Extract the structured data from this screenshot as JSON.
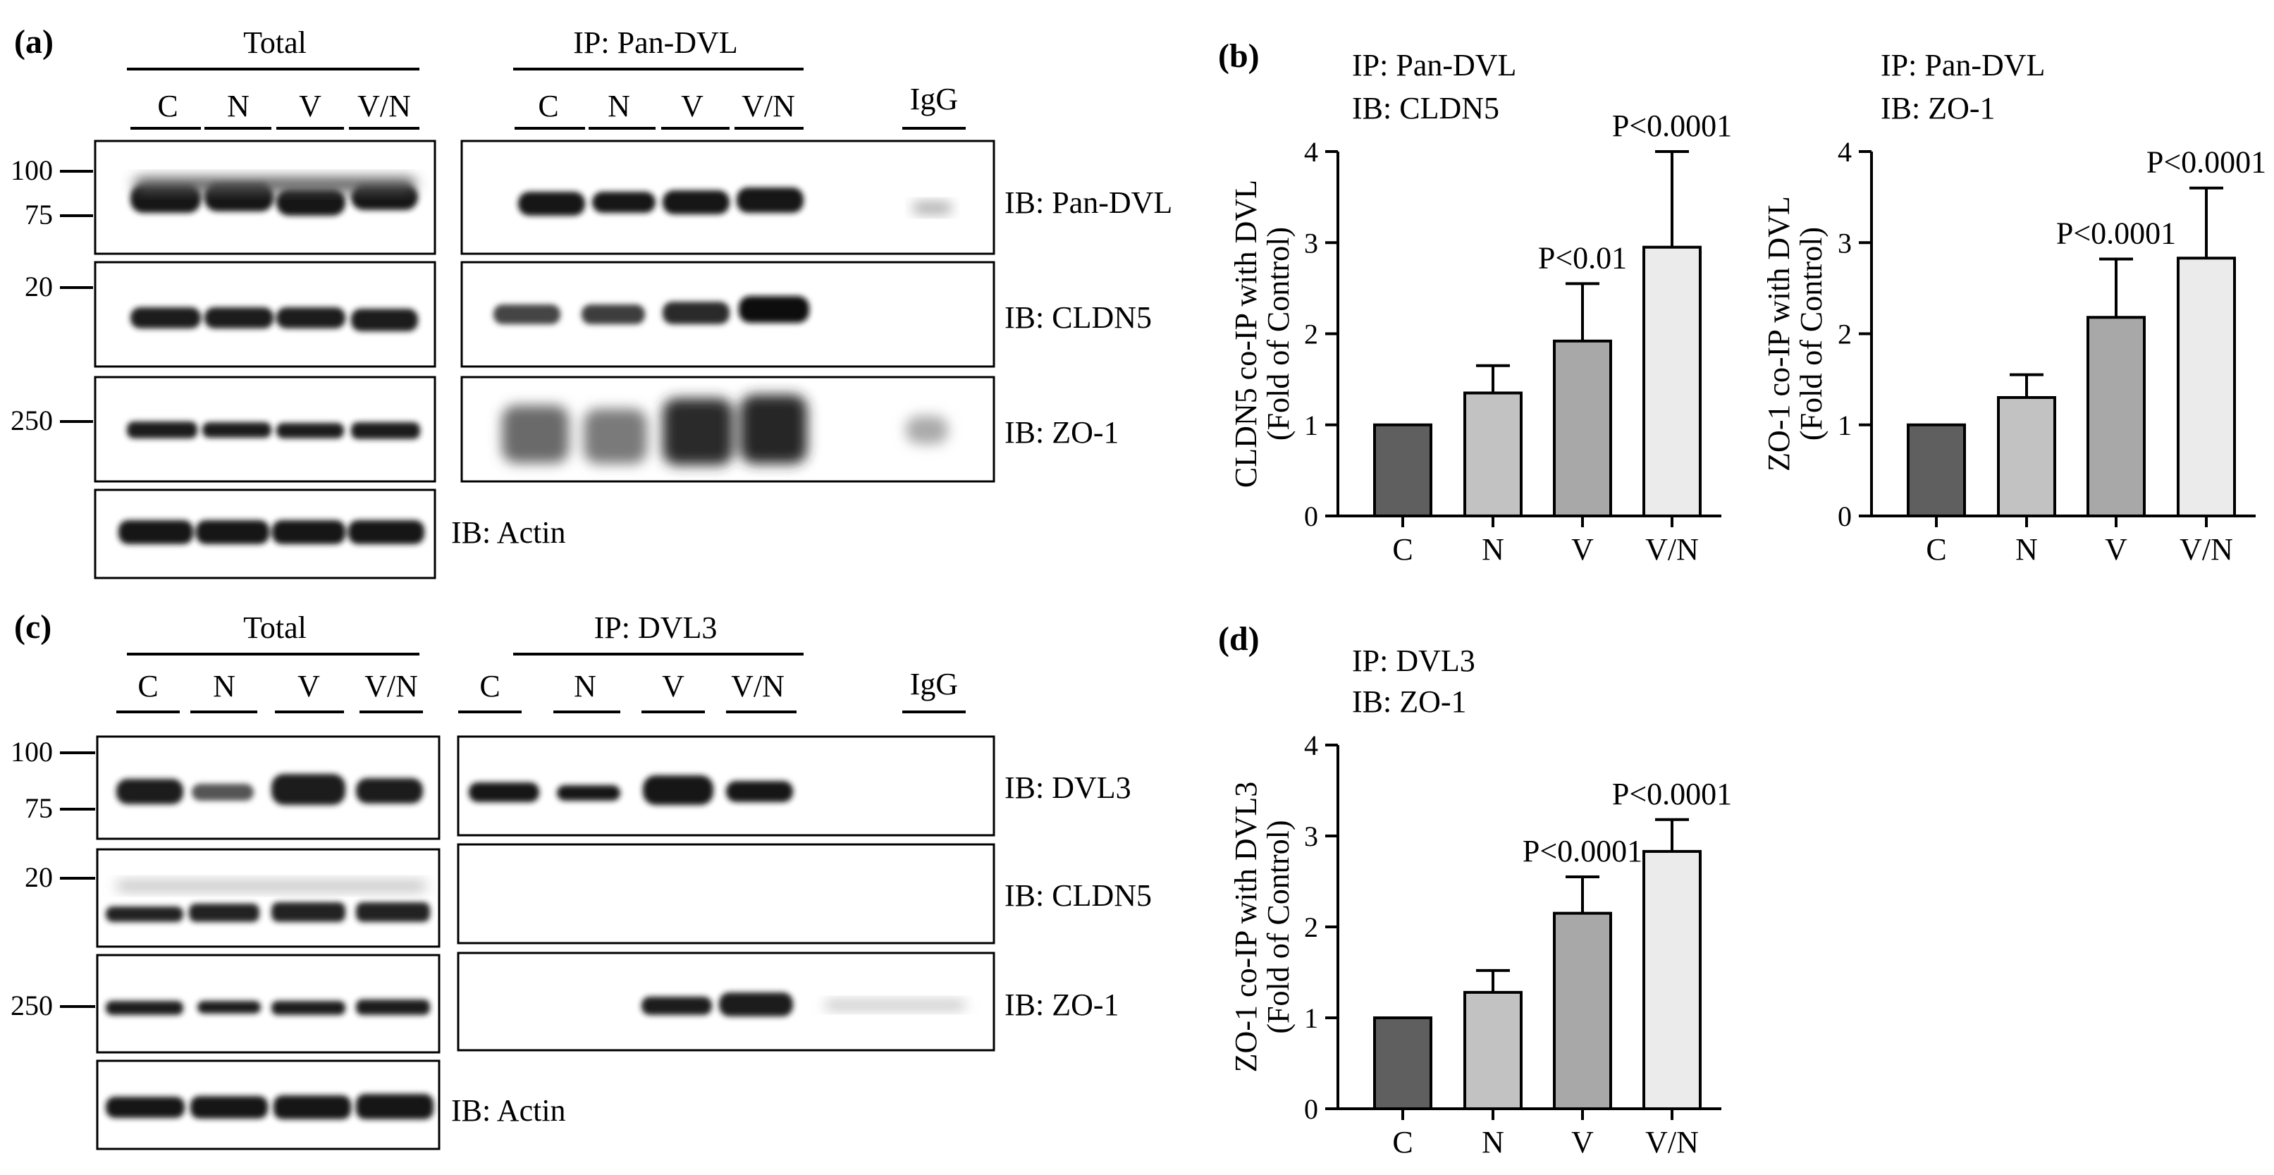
{
  "panel_a": {
    "label": "(a)",
    "total_header": "Total",
    "ip_header": "IP: Pan-DVL",
    "lanes_total": [
      "C",
      "N",
      "V",
      "V/N"
    ],
    "lanes_ip": [
      "C",
      "N",
      "V",
      "V/N"
    ],
    "igg": "IgG",
    "mw": {
      "m100": "100",
      "m75": "75",
      "m20": "20",
      "m250": "250"
    },
    "blots": [
      "IB: Pan-DVL",
      "IB: CLDN5",
      "IB: ZO-1",
      "IB: Actin"
    ]
  },
  "panel_c": {
    "label": "(c)",
    "total_header": "Total",
    "ip_header": "IP: DVL3",
    "lanes_total": [
      "C",
      "N",
      "V",
      "V/N"
    ],
    "lanes_ip": [
      "C",
      "N",
      "V",
      "V/N"
    ],
    "igg": "IgG",
    "mw": {
      "m100": "100",
      "m75": "75",
      "m20": "20",
      "m250": "250"
    },
    "blots": [
      "IB: DVL3",
      "IB: CLDN5",
      "IB: ZO-1",
      "IB: Actin"
    ]
  },
  "panel_b": {
    "label": "(b)"
  },
  "panel_d": {
    "label": "(d)"
  },
  "colors": {
    "C": "#5f5f5f",
    "N": "#c2c2c2",
    "V": "#a8a8a8",
    "V/N": "#ebebeb"
  },
  "chart_data": [
    {
      "type": "bar",
      "panel": "b",
      "title": [
        "IP: Pan-DVL",
        "IB: CLDN5"
      ],
      "categories": [
        "C",
        "N",
        "V",
        "V/N"
      ],
      "values": [
        1.0,
        1.35,
        1.92,
        2.95
      ],
      "error_upper": [
        1.0,
        1.65,
        2.55,
        4.0
      ],
      "annotations": [
        "",
        "",
        "P<0.01",
        "P<0.0001"
      ],
      "ylabel": [
        "CLDN5 co-IP with DVL",
        "(Fold of Control)"
      ],
      "ylim": [
        0,
        4
      ],
      "yticks": [
        "0",
        "1",
        "2",
        "3",
        "4"
      ]
    },
    {
      "type": "bar",
      "panel": "b",
      "title": [
        "IP: Pan-DVL",
        "IB: ZO-1"
      ],
      "categories": [
        "C",
        "N",
        "V",
        "V/N"
      ],
      "values": [
        1.0,
        1.3,
        2.18,
        2.83
      ],
      "error_upper": [
        1.0,
        1.55,
        2.82,
        3.6
      ],
      "annotations": [
        "",
        "",
        "P<0.0001",
        "P<0.0001"
      ],
      "ylabel": [
        "ZO-1 co-IP with DVL",
        "(Fold of Control)"
      ],
      "ylim": [
        0,
        4
      ],
      "yticks": [
        "0",
        "1",
        "2",
        "3",
        "4"
      ]
    },
    {
      "type": "bar",
      "panel": "d",
      "title": [
        "IP: DVL3",
        "IB: ZO-1"
      ],
      "categories": [
        "C",
        "N",
        "V",
        "V/N"
      ],
      "values": [
        1.0,
        1.28,
        2.15,
        2.83
      ],
      "error_upper": [
        1.0,
        1.52,
        2.55,
        3.18
      ],
      "annotations": [
        "",
        "",
        "P<0.0001",
        "P<0.0001"
      ],
      "ylabel": [
        "ZO-1 co-IP with DVL3",
        "(Fold of Control)"
      ],
      "ylim": [
        0,
        4
      ],
      "yticks": [
        "0",
        "1",
        "2",
        "3",
        "4"
      ]
    }
  ]
}
